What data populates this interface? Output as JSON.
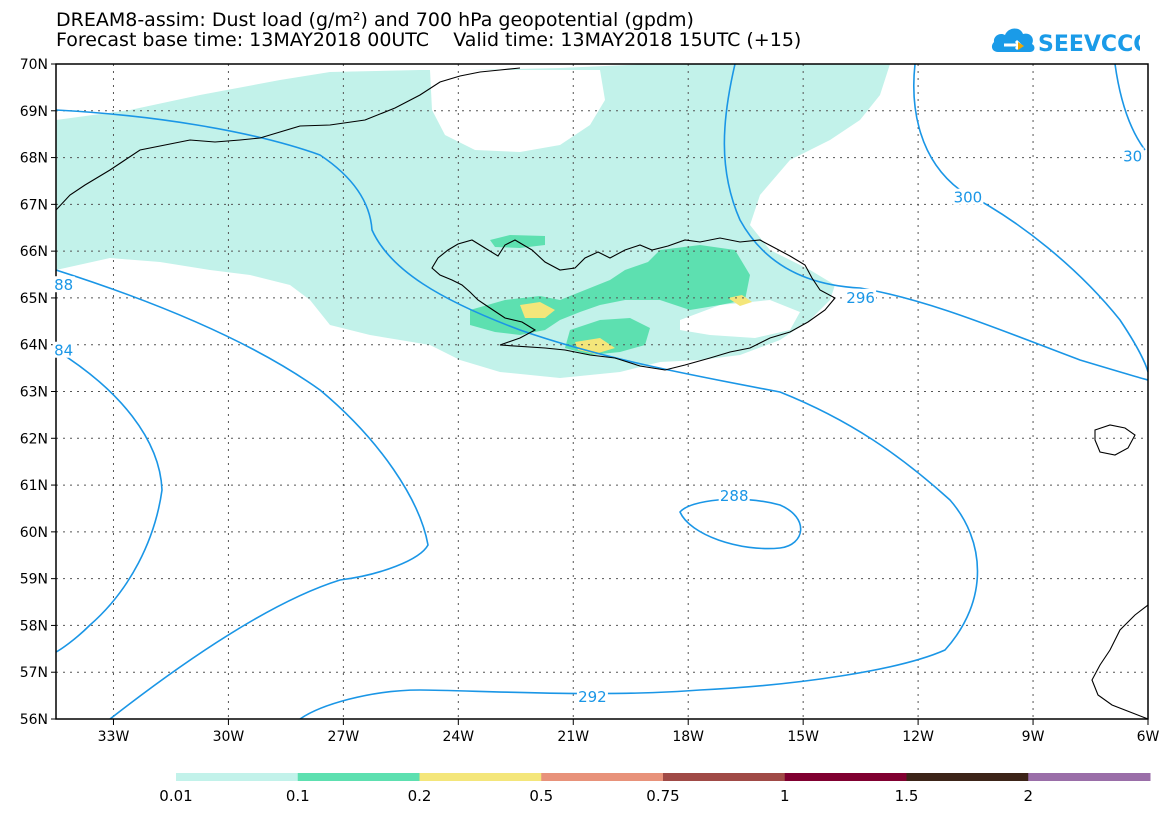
{
  "title": {
    "line1": "DREAM8-assim: Dust load (g/m²) and 700 hPa geopotential (gpdm)",
    "line2": "Forecast base time: 13MAY2018 00UTC    Valid time: 13MAY2018 15UTC (+15)"
  },
  "logo": {
    "text": "SEEVCCC",
    "color": "#1a9be8"
  },
  "map": {
    "lon_range": [
      -34.5,
      -6
    ],
    "lat_range": [
      56,
      70
    ],
    "lon_ticks": [
      {
        "v": -33,
        "label": "33W"
      },
      {
        "v": -30,
        "label": "30W"
      },
      {
        "v": -27,
        "label": "27W"
      },
      {
        "v": -24,
        "label": "24W"
      },
      {
        "v": -21,
        "label": "21W"
      },
      {
        "v": -18,
        "label": "18W"
      },
      {
        "v": -15,
        "label": "15W"
      },
      {
        "v": -12,
        "label": "12W"
      },
      {
        "v": -9,
        "label": "9W"
      },
      {
        "v": -6,
        "label": "6W"
      }
    ],
    "lat_ticks": [
      {
        "v": 70,
        "label": "70N"
      },
      {
        "v": 69,
        "label": "69N"
      },
      {
        "v": 68,
        "label": "68N"
      },
      {
        "v": 67,
        "label": "67N"
      },
      {
        "v": 66,
        "label": "66N"
      },
      {
        "v": 65,
        "label": "65N"
      },
      {
        "v": 64,
        "label": "64N"
      },
      {
        "v": 63,
        "label": "63N"
      },
      {
        "v": 62,
        "label": "62N"
      },
      {
        "v": 61,
        "label": "61N"
      },
      {
        "v": 60,
        "label": "60N"
      },
      {
        "v": 59,
        "label": "59N"
      },
      {
        "v": 58,
        "label": "58N"
      },
      {
        "v": 57,
        "label": "57N"
      },
      {
        "v": 56,
        "label": "56N"
      }
    ],
    "contour_labels": [
      {
        "text": "288",
        "lon": -16.8,
        "lat": 60.75
      },
      {
        "text": "292",
        "lon": -20.5,
        "lat": 56.45
      },
      {
        "text": "296",
        "lon": -13.5,
        "lat": 64.98
      },
      {
        "text": "300",
        "lon": -10.7,
        "lat": 67.12
      },
      {
        "text": "88",
        "lon": -34.3,
        "lat": 65.25
      },
      {
        "text": "84",
        "lon": -34.3,
        "lat": 63.85
      },
      {
        "text": "30",
        "lon": -6.4,
        "lat": 68.0
      }
    ],
    "contour_color": "#1a96e6",
    "coast_color": "#000000"
  },
  "colorbar": {
    "colors": [
      "#c2f2ea",
      "#5de0b0",
      "#f4e67a",
      "#e8927a",
      "#a04a46",
      "#800030",
      "#3c2418",
      "#9a6ea8"
    ],
    "labels": [
      "0.01",
      "0.1",
      "0.2",
      "0.5",
      "0.75",
      "1",
      "1.5",
      "2"
    ]
  }
}
